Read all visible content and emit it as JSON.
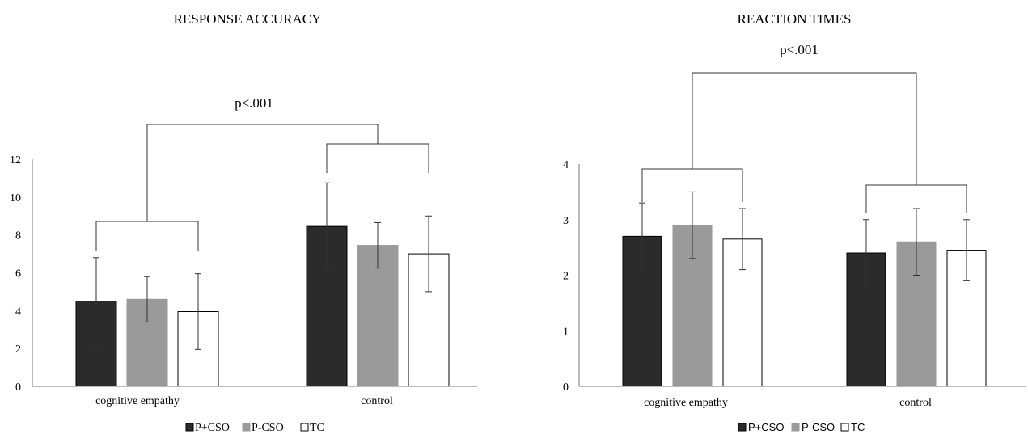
{
  "chart_data": [
    {
      "type": "bar",
      "title": "RESPONSE ACCURACY",
      "categories": [
        "cognitive empathy",
        "control"
      ],
      "series": [
        {
          "name": "P+CSO",
          "values": [
            4.5,
            8.45
          ],
          "errors": [
            2.3,
            2.3
          ],
          "color": "#2b2b2b"
        },
        {
          "name": "P-CSO",
          "values": [
            4.6,
            7.45
          ],
          "errors": [
            1.2,
            1.2
          ],
          "color": "#9a9a9a"
        },
        {
          "name": "TC",
          "values": [
            3.95,
            7.0
          ],
          "errors": [
            2.0,
            2.0
          ],
          "color": "#ffffff"
        }
      ],
      "ylim": [
        0,
        12
      ],
      "yticks": [
        "0",
        "2",
        "4",
        "6",
        "8",
        "10",
        "12"
      ],
      "xlabel": "",
      "ylabel": "",
      "legend": "bottom",
      "grid": false,
      "annotation": "p<.001"
    },
    {
      "type": "bar",
      "title": "REACTION TIMES",
      "categories": [
        "cognitive empathy",
        "control"
      ],
      "series": [
        {
          "name": "P+CSO",
          "values": [
            2.7,
            2.4
          ],
          "errors": [
            0.6,
            0.6
          ],
          "color": "#2b2b2b"
        },
        {
          "name": "P-CSO",
          "values": [
            2.9,
            2.6
          ],
          "errors": [
            0.6,
            0.6
          ],
          "color": "#9a9a9a"
        },
        {
          "name": "TC",
          "values": [
            2.65,
            2.45
          ],
          "errors": [
            0.55,
            0.55
          ],
          "color": "#ffffff"
        }
      ],
      "ylim": [
        0,
        4
      ],
      "yticks": [
        "0",
        "1",
        "2",
        "3",
        "4"
      ],
      "xlabel": "",
      "ylabel": "",
      "legend": "bottom",
      "grid": false,
      "annotation": "p<.001"
    }
  ]
}
